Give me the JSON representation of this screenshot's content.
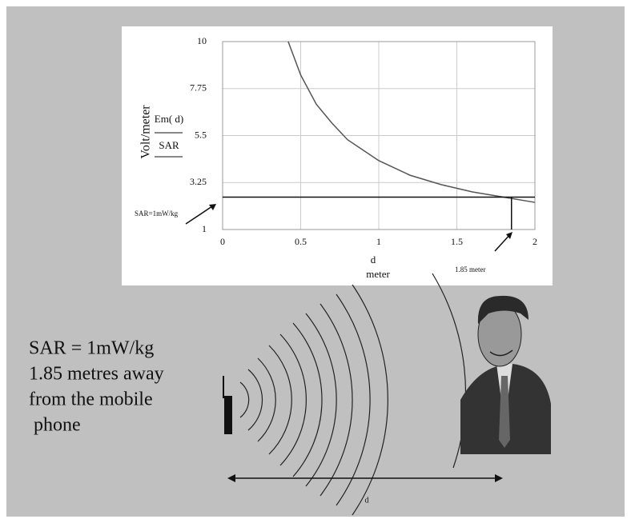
{
  "chart_data": {
    "type": "line",
    "y_label": "Volt/meter",
    "y_fraction_top": "Em( d)",
    "y_fraction_bottom": "SAR",
    "x_label": "d",
    "x_unit": "meter",
    "x": [
      0.42,
      0.5,
      0.6,
      0.7,
      0.8,
      0.9,
      1.0,
      1.2,
      1.4,
      1.6,
      1.8,
      2.0
    ],
    "values": [
      10,
      8.4,
      7.0,
      6.1,
      5.3,
      4.8,
      4.3,
      3.6,
      3.15,
      2.8,
      2.55,
      2.3
    ],
    "color": "#555555",
    "xlim": [
      0,
      2
    ],
    "xticks": [
      0,
      0.5,
      1,
      1.5,
      2
    ],
    "ylim": [
      1,
      10
    ],
    "yticks": [
      1,
      3.25,
      5.5,
      7.75,
      10
    ],
    "grid": true,
    "threshold": {
      "y": 2.55,
      "x": 1.85,
      "y_annotation": "SAR=1mW/kg",
      "x_annotation": "1.85 meter"
    }
  },
  "slide": {
    "lines": [
      "SAR = 1mW/kg",
      "1.85 metres away",
      "from the mobile",
      " phone"
    ],
    "distance_label": "d"
  }
}
